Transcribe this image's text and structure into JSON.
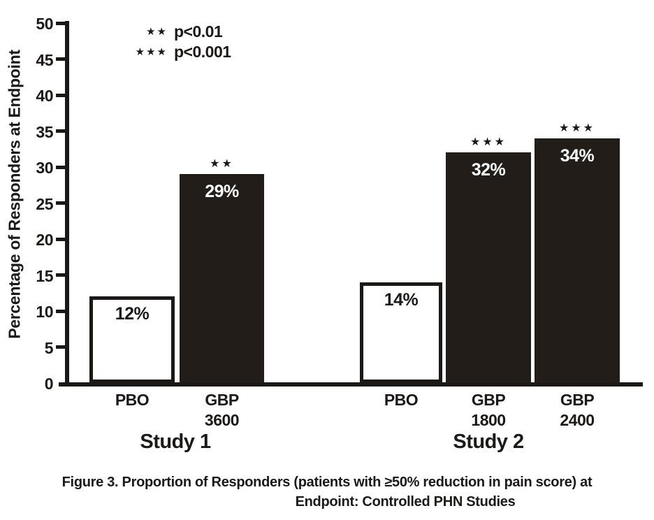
{
  "figure": {
    "caption_line1": "Figure 3. Proportion of Responders (patients with ≥50% reduction in pain score) at",
    "caption_line2": "Endpoint: Controlled PHN Studies"
  },
  "legend": {
    "entries": [
      {
        "symbol": "**",
        "text": "p<0.01"
      },
      {
        "symbol": "***",
        "text": "p<0.001"
      }
    ]
  },
  "colors": {
    "bar_dark": "#221d18",
    "bar_white": "#ffffff",
    "axis": "#1b1917",
    "text": "#1c1a19"
  },
  "chart_data": {
    "type": "bar",
    "title": "",
    "xlabel": "",
    "ylabel": "Percentage of Responders at Endpoint",
    "ylim": [
      0,
      50
    ],
    "yticks": [
      0,
      5,
      10,
      15,
      20,
      25,
      30,
      35,
      40,
      45,
      50
    ],
    "grid": false,
    "legend_position": "top-left-inside",
    "groups": [
      {
        "label": "Study 1",
        "bars": [
          {
            "label_lines": [
              "PBO"
            ],
            "value": 12,
            "display_value": "12%",
            "fill": "white",
            "significance": ""
          },
          {
            "label_lines": [
              "GBP",
              "3600"
            ],
            "value": 29,
            "display_value": "29%",
            "fill": "dark",
            "significance": "**"
          }
        ]
      },
      {
        "label": "Study 2",
        "bars": [
          {
            "label_lines": [
              "PBO"
            ],
            "value": 14,
            "display_value": "14%",
            "fill": "white",
            "significance": ""
          },
          {
            "label_lines": [
              "GBP",
              "1800"
            ],
            "value": 32,
            "display_value": "32%",
            "fill": "dark",
            "significance": "***"
          },
          {
            "label_lines": [
              "GBP",
              "2400"
            ],
            "value": 34,
            "display_value": "34%",
            "fill": "dark",
            "significance": "***"
          }
        ]
      }
    ]
  }
}
